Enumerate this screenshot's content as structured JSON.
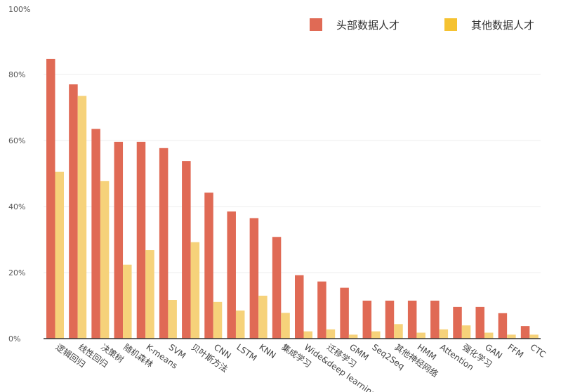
{
  "chart_data": {
    "type": "bar",
    "title": "",
    "xlabel": "",
    "ylabel": "",
    "ylim": [
      0,
      100
    ],
    "y_ticks": [
      "0%",
      "20%",
      "40%",
      "60%",
      "80%",
      "100%"
    ],
    "y_tick_values": [
      0,
      20,
      40,
      60,
      80,
      100
    ],
    "grid": true,
    "legend_position": "top-right",
    "categories": [
      "逻辑回归",
      "线性回归",
      "决策树",
      "随机森林",
      "K-means",
      "SVM",
      "贝叶斯方法",
      "CNN",
      "LSTM",
      "KNN",
      "集成学习",
      "Wide&deep learning",
      "迁移学习",
      "GMM",
      "Seq2Seq",
      "其他神经网络",
      "HMM",
      "Attention",
      "强化学习",
      "GAN",
      "FFM",
      "CTC"
    ],
    "series": [
      {
        "name": "头部数据人才",
        "color": "#e06a55",
        "values": [
          84.7,
          77.0,
          63.5,
          59.6,
          59.6,
          57.7,
          53.8,
          44.2,
          38.5,
          36.5,
          30.8,
          19.2,
          17.3,
          15.4,
          11.5,
          11.5,
          11.5,
          11.5,
          9.6,
          9.6,
          7.7,
          3.8
        ]
      },
      {
        "name": "其他数据人才",
        "color": "#f6d27a",
        "values": [
          50.5,
          73.5,
          47.7,
          22.4,
          26.8,
          11.7,
          29.2,
          11.1,
          8.5,
          13.0,
          7.8,
          2.2,
          2.8,
          1.2,
          2.2,
          4.4,
          1.8,
          2.8,
          4.0,
          1.8,
          1.2,
          1.2
        ]
      }
    ]
  },
  "legend": {
    "items": [
      {
        "label": "头部数据人才",
        "color": "#e06a55"
      },
      {
        "label": "其他数据人才",
        "color": "#f5c231"
      }
    ]
  }
}
